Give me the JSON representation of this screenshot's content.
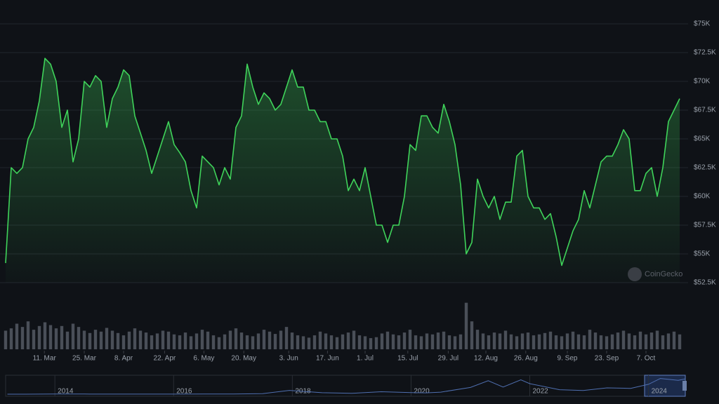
{
  "chart_data": {
    "type": "line",
    "watermark": "CoinGecko",
    "color": "#3fd35a",
    "ylim": [
      52500,
      75000
    ],
    "yticks": [
      {
        "value": 52500,
        "label": "$52.5K"
      },
      {
        "value": 55000,
        "label": "$55K"
      },
      {
        "value": 57500,
        "label": "$57.5K"
      },
      {
        "value": 60000,
        "label": "$60K"
      },
      {
        "value": 62500,
        "label": "$62.5K"
      },
      {
        "value": 65000,
        "label": "$65K"
      },
      {
        "value": 67500,
        "label": "$67.5K"
      },
      {
        "value": 70000,
        "label": "$70K"
      },
      {
        "value": 72500,
        "label": "$72.5K"
      },
      {
        "value": 75000,
        "label": "$75K"
      }
    ],
    "xlim": [
      0,
      121
    ],
    "xticks": [
      {
        "value": 6.9,
        "label": "11. Mar"
      },
      {
        "value": 14,
        "label": "25. Mar"
      },
      {
        "value": 21,
        "label": "8. Apr"
      },
      {
        "value": 28.3,
        "label": "22. Apr"
      },
      {
        "value": 35.3,
        "label": "6. May"
      },
      {
        "value": 42.4,
        "label": "20. May"
      },
      {
        "value": 50.4,
        "label": "3. Jun"
      },
      {
        "value": 57.3,
        "label": "17. Jun"
      },
      {
        "value": 64,
        "label": "1. Jul"
      },
      {
        "value": 71.6,
        "label": "15. Jul"
      },
      {
        "value": 78.8,
        "label": "29. Jul"
      },
      {
        "value": 85.5,
        "label": "12. Aug"
      },
      {
        "value": 92.6,
        "label": "26. Aug"
      },
      {
        "value": 100,
        "label": "9. Sep"
      },
      {
        "value": 107,
        "label": "23. Sep"
      },
      {
        "value": 114,
        "label": "7. Oct"
      }
    ],
    "grid": true,
    "y2lim": [
      0,
      110
    ],
    "series": [
      {
        "color": "#3fd35a",
        "values": [
          54200,
          62500,
          62000,
          62500,
          65000,
          66000,
          68300,
          72000,
          71500,
          70000,
          66000,
          67500,
          63000,
          65000,
          70000,
          69500,
          70500,
          70000,
          66000,
          68500,
          69500,
          71000,
          70500,
          67000,
          65500,
          64000,
          62000,
          63500,
          65000,
          66500,
          64500,
          63800,
          63000,
          60500,
          59000,
          63500,
          63000,
          62500,
          61000,
          62500,
          61500,
          66000,
          67000,
          71500,
          69500,
          68000,
          69000,
          68500,
          67500,
          68000,
          69500,
          71000,
          69500,
          69500,
          67500,
          67500,
          66500,
          66500,
          65000,
          65000,
          63500,
          60500,
          61500,
          60500,
          62500,
          60000,
          57500,
          57500,
          56000,
          57500,
          57500,
          60000,
          64500,
          64000,
          67000,
          67000,
          66000,
          65500,
          68000,
          66500,
          64500,
          61000,
          55000,
          56000,
          61500,
          60000,
          59000,
          60000,
          58000,
          59500,
          59500,
          63500,
          64000,
          60000,
          59000,
          59000,
          58000,
          58500,
          56500,
          54000,
          55500,
          57000,
          58000,
          60500,
          59000,
          61000,
          63000,
          63500,
          63500,
          64500,
          65800,
          65000,
          60500,
          60500,
          62000,
          62500,
          60000,
          62500,
          66500,
          67500,
          68500
        ]
      },
      {
        "color": "#4a4f58",
        "axis": "y2",
        "values": [
          40,
          45,
          55,
          48,
          60,
          42,
          50,
          58,
          52,
          45,
          50,
          38,
          55,
          48,
          40,
          35,
          42,
          38,
          46,
          40,
          35,
          30,
          38,
          45,
          40,
          36,
          30,
          34,
          40,
          38,
          32,
          30,
          36,
          28,
          34,
          42,
          38,
          30,
          26,
          32,
          40,
          45,
          36,
          30,
          28,
          34,
          42,
          38,
          33,
          40,
          48,
          36,
          30,
          28,
          25,
          30,
          38,
          34,
          30,
          26,
          32,
          36,
          40,
          30,
          28,
          24,
          26,
          34,
          38,
          32,
          30,
          36,
          42,
          30,
          28,
          34,
          32,
          36,
          38,
          30,
          28,
          32,
          100,
          60,
          42,
          34,
          30,
          36,
          34,
          40,
          32,
          28,
          34,
          36,
          30,
          32,
          35,
          38,
          30,
          28,
          34,
          38,
          32,
          30,
          42,
          36,
          30,
          28,
          32,
          36,
          40,
          34,
          30,
          38,
          32,
          36,
          40,
          30,
          34,
          38,
          32
        ]
      }
    ],
    "navigator": {
      "color": "#4f6fb0",
      "xlim": [
        2013.17,
        2024.62
      ],
      "ylim": [
        0,
        75000
      ],
      "xticks": [
        2014,
        2016,
        2018,
        2020,
        2022,
        2024
      ],
      "x": [
        2013.2,
        2013.5,
        2014,
        2014.5,
        2015,
        2015.5,
        2016,
        2016.5,
        2017,
        2017.5,
        2017.95,
        2018.5,
        2019,
        2019.5,
        2020,
        2020.25,
        2020.5,
        2021,
        2021.3,
        2021.55,
        2021.85,
        2022,
        2022.5,
        2022.9,
        2023.3,
        2023.7,
        2024,
        2024.2,
        2024.5,
        2024.62
      ],
      "values": [
        100,
        100,
        800,
        600,
        250,
        250,
        430,
        650,
        1000,
        2500,
        17000,
        6500,
        3800,
        11000,
        7200,
        6000,
        9200,
        30000,
        60000,
        32000,
        64000,
        47000,
        20000,
        16500,
        28000,
        26000,
        44000,
        70000,
        62000,
        68000
      ]
    }
  }
}
